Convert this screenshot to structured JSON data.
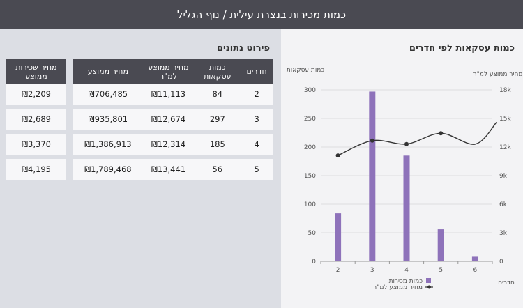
{
  "header": {
    "title": "כמות מכירות בנצרת עילית / נוף הגליל"
  },
  "details": {
    "title": "פירוט נתונים",
    "columns": [
      "חדרים",
      "כמות עסקאות",
      "מחיר ממוצע למ\"ר",
      "מחיר ממוצע"
    ],
    "rows": [
      [
        "2",
        "84",
        "₪11,113",
        "₪706,485"
      ],
      [
        "3",
        "297",
        "₪12,674",
        "₪935,801"
      ],
      [
        "4",
        "185",
        "₪12,314",
        "₪1,386,913"
      ],
      [
        "5",
        "56",
        "₪13,441",
        "₪1,789,468"
      ]
    ],
    "rent_header": "מחיר שכירות ממוצע",
    "rent_rows": [
      "₪2,209",
      "₪2,689",
      "₪3,370",
      "₪4,195"
    ]
  },
  "chart_data": {
    "type": "bar",
    "title": "כמות עסקאות לפי חדרים",
    "ylabel_left": "כמות עסקאות",
    "ylabel_right": "מחיר ממוצע למ\"ר",
    "xlabel": "חדרים",
    "categories": [
      "2",
      "3",
      "4",
      "5",
      "6"
    ],
    "ylim": [
      0,
      300
    ],
    "y2lim": [
      0,
      18000
    ],
    "yticks": [
      "300",
      "250",
      "200",
      "150",
      "100",
      "50",
      "0"
    ],
    "y2ticks": [
      "18k",
      "15k",
      "12k",
      "9k",
      "6k",
      "3k",
      "0"
    ],
    "series": [
      {
        "name": "כמות מכירות",
        "type": "bar",
        "color": "#8e72ba",
        "values": [
          84,
          297,
          185,
          56,
          8
        ]
      },
      {
        "name": "מחיר ממוצע למ\"ר",
        "type": "line",
        "color": "#333333",
        "values": [
          11113,
          12674,
          12314,
          13441,
          12300
        ]
      }
    ]
  }
}
